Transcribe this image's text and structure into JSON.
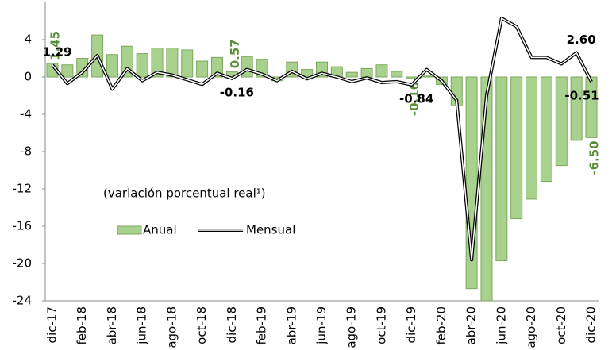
{
  "chart_data": {
    "type": "bar_line",
    "annotation": "(variación porcentual real¹)",
    "categories": [
      "dic-17",
      null,
      "feb-18",
      null,
      "abr-18",
      null,
      "jun-18",
      null,
      "ago-18",
      null,
      "oct-18",
      null,
      "dic-18",
      null,
      "feb-19",
      null,
      "abr-19",
      null,
      "jun-19",
      null,
      "ago-19",
      null,
      "oct-19",
      null,
      "dic-19",
      null,
      "feb-20",
      null,
      "abr-20",
      null,
      "jun-20",
      null,
      "ago-20",
      null,
      "oct-20",
      null,
      "dic-20"
    ],
    "series": [
      {
        "name": "Anual",
        "type": "bar",
        "color": "#a9d18e",
        "values": [
          1.45,
          1.3,
          2.0,
          4.5,
          2.4,
          3.3,
          2.5,
          3.1,
          3.1,
          2.9,
          1.7,
          2.1,
          0.57,
          2.2,
          1.9,
          -0.4,
          1.6,
          0.8,
          1.6,
          1.1,
          0.5,
          0.9,
          1.3,
          0.6,
          -0.16,
          0.1,
          -0.8,
          -3.1,
          -22.7,
          -24.0,
          -19.7,
          -15.2,
          -13.1,
          -11.2,
          -9.5,
          -6.8,
          -6.5
        ],
        "value_labels": [
          "1.45",
          null,
          null,
          null,
          null,
          null,
          null,
          null,
          null,
          null,
          null,
          null,
          "0.57",
          null,
          null,
          null,
          null,
          null,
          null,
          null,
          null,
          null,
          null,
          null,
          "-0.16",
          null,
          null,
          null,
          null,
          null,
          null,
          null,
          null,
          null,
          null,
          null,
          "-6.50"
        ]
      },
      {
        "name": "Mensual",
        "type": "line",
        "color": "#000000",
        "values": [
          1.29,
          -0.7,
          0.5,
          2.3,
          -1.3,
          0.9,
          -0.4,
          0.5,
          0.2,
          -0.3,
          -0.8,
          0.4,
          -0.16,
          0.8,
          0.3,
          -0.4,
          0.6,
          -0.2,
          0.4,
          0.0,
          -0.5,
          -0.1,
          -0.6,
          -0.5,
          -0.84,
          0.8,
          -0.4,
          -2.5,
          -19.6,
          -2.0,
          6.3,
          5.4,
          2.1,
          2.1,
          1.4,
          2.6,
          -0.51
        ],
        "value_labels": [
          "1.29",
          null,
          null,
          null,
          null,
          null,
          null,
          null,
          null,
          null,
          null,
          null,
          "-0.16",
          null,
          null,
          null,
          null,
          null,
          null,
          null,
          null,
          null,
          null,
          null,
          "-0.84",
          null,
          null,
          null,
          null,
          null,
          null,
          null,
          null,
          null,
          null,
          "2.60",
          "-0.51"
        ]
      }
    ],
    "ylim": [
      -24,
      8
    ],
    "yticks": [
      4,
      0,
      -4,
      -8,
      -12,
      -16,
      -20,
      -24
    ],
    "grid": false
  }
}
